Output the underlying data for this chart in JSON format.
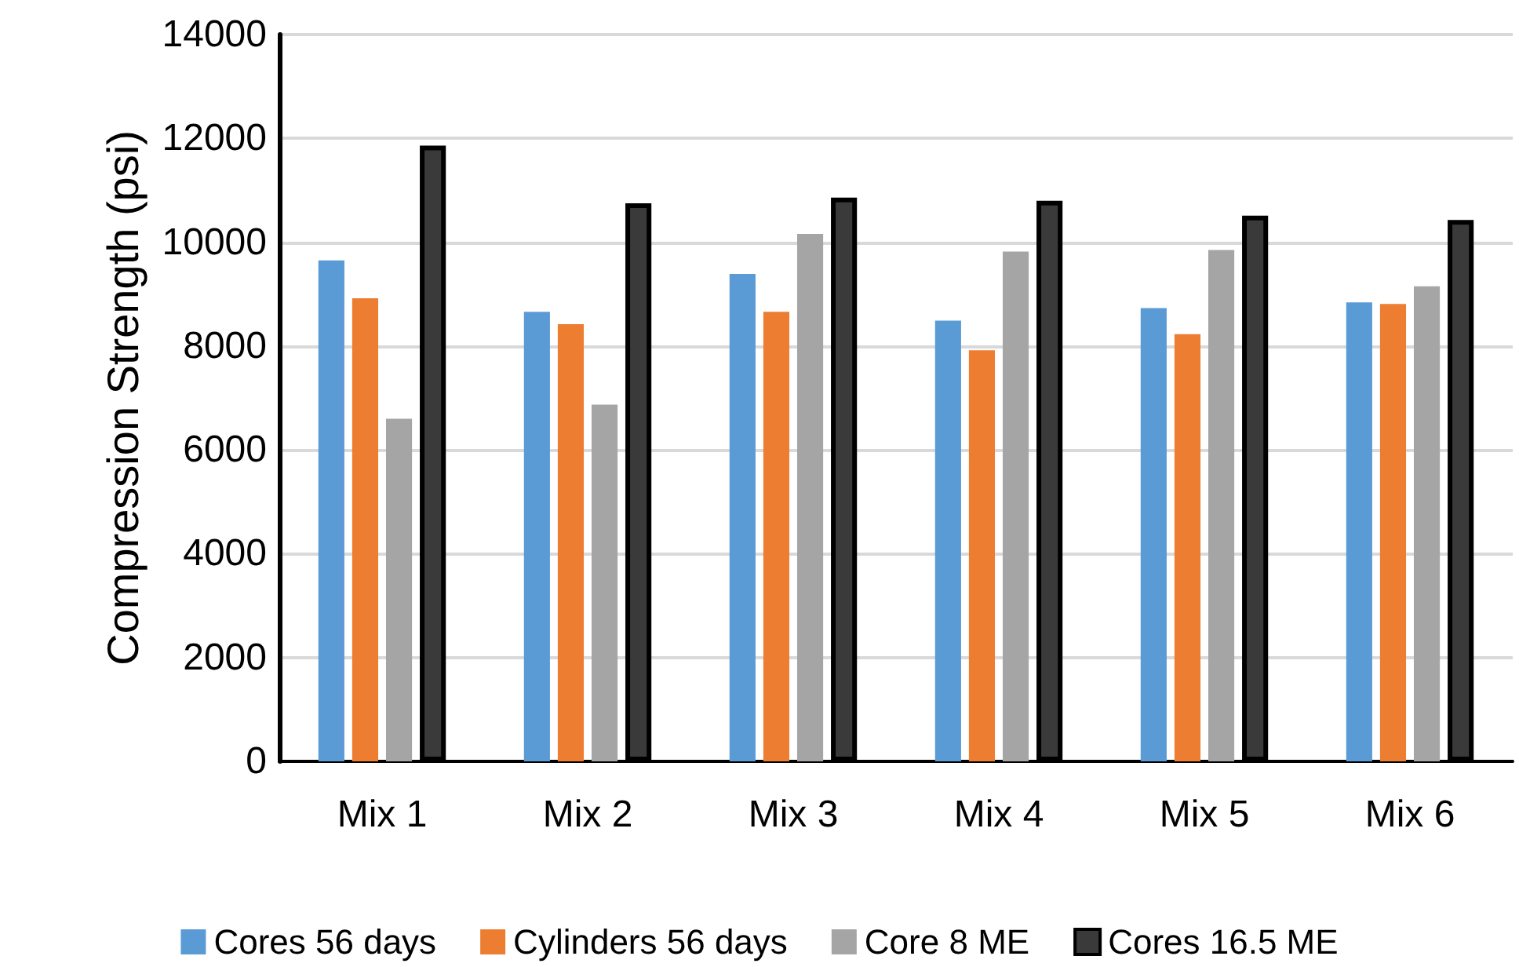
{
  "chart_data": {
    "type": "bar",
    "ylabel": "Compression Strength (psi)",
    "categories": [
      "Mix 1",
      "Mix 2",
      "Mix 3",
      "Mix 4",
      "Mix 5",
      "Mix 6"
    ],
    "series": [
      {
        "name": "Cores 56 days",
        "color": "#5b9bd5",
        "values": [
          9650,
          8660,
          9390,
          8490,
          8730,
          8840
        ]
      },
      {
        "name": "Cylinders 56 days",
        "color": "#ed7d31",
        "values": [
          8920,
          8420,
          8660,
          7920,
          8230,
          8810
        ]
      },
      {
        "name": "Core 8 ME",
        "color": "#a5a5a5",
        "values": [
          6600,
          6870,
          10160,
          9820,
          9850,
          9150
        ]
      },
      {
        "name": "Cores 16.5 ME",
        "color": "#3a3a3a",
        "values": [
          11860,
          10750,
          10860,
          10800,
          10510,
          10430
        ]
      }
    ],
    "ylim": [
      0,
      14000
    ],
    "yticks": [
      0,
      2000,
      4000,
      6000,
      8000,
      10000,
      12000,
      14000
    ],
    "grid": "y",
    "legend": "bottom"
  }
}
